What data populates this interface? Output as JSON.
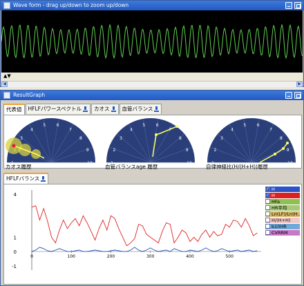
{
  "wave_window": {
    "title": "Wave form - drag up/down to zoom up/down",
    "strip_label": "▲▼"
  },
  "result_window": {
    "title": "ResultGraph"
  },
  "tabs": [
    {
      "label": "代表値",
      "icon": null,
      "active": true
    },
    {
      "label": "HFLFパワースペクトル",
      "icon": "chart-icon",
      "active": false
    },
    {
      "label": "カオス",
      "icon": "chart-icon",
      "active": false
    },
    {
      "label": "血管バランス",
      "icon": "chart-icon",
      "active": false
    }
  ],
  "gauges": [
    {
      "label": "カオス履歴",
      "ticks": [
        "1",
        "2",
        "3",
        "4",
        "5",
        "6",
        "7",
        "8",
        "9",
        "10"
      ]
    },
    {
      "label": "血管バランスage 履歴",
      "ticks": [
        "1",
        "2",
        "3",
        "4",
        "5",
        "6",
        "7",
        "8",
        "9",
        "10"
      ]
    },
    {
      "label": "自律神経比(H/(H+H))履歴",
      "ticks": [
        "1",
        "2",
        "3",
        "4",
        "5",
        "6",
        "7",
        "8",
        "9",
        "10"
      ]
    }
  ],
  "chart_tab": {
    "label": "HFLFバランス",
    "icon": "chart-icon"
  },
  "chart_data": {
    "type": "line",
    "title": "",
    "xlabel": "",
    "ylabel": "",
    "xlim": [
      0,
      580
    ],
    "ylim": [
      -1.3,
      4.3
    ],
    "xticks": [
      "0",
      "100",
      "200",
      "300",
      "400",
      "500"
    ],
    "yticks": [
      "4",
      "1",
      "0",
      "-1"
    ],
    "series": [
      {
        "name": "H",
        "color": "#e02020",
        "x": [
          0,
          10,
          20,
          30,
          40,
          50,
          60,
          70,
          80,
          90,
          100,
          110,
          120,
          130,
          140,
          150,
          160,
          170,
          180,
          190,
          200,
          210,
          220,
          230,
          240,
          250,
          260,
          270,
          280,
          290,
          300,
          310,
          320,
          330,
          340,
          350,
          360,
          370,
          380,
          390,
          400,
          410,
          420,
          430,
          440,
          450,
          460,
          470,
          480,
          490,
          500,
          510,
          520,
          530,
          540,
          550,
          560,
          570
        ],
        "values": [
          3.1,
          3.2,
          2.2,
          3.0,
          2.1,
          1.0,
          0.6,
          1.5,
          2.2,
          1.6,
          2.0,
          2.3,
          1.8,
          2.5,
          2.0,
          1.4,
          0.8,
          1.6,
          2.2,
          1.5,
          2.5,
          2.3,
          1.6,
          1.0,
          0.4,
          0.6,
          0.9,
          1.9,
          1.8,
          1.2,
          1.0,
          0.8,
          0.6,
          1.4,
          2.0,
          1.9,
          0.6,
          1.0,
          1.5,
          1.3,
          0.7,
          1.0,
          0.7,
          1.2,
          1.5,
          1.0,
          1.4,
          1.1,
          1.2,
          1.9,
          1.7,
          2.2,
          2.1,
          1.7,
          2.3,
          1.8,
          1.1,
          1.3
        ]
      },
      {
        "name": "",
        "color": "#2050b0",
        "x": [
          0,
          10,
          20,
          30,
          40,
          50,
          60,
          70,
          80,
          90,
          100,
          110,
          120,
          130,
          140,
          150,
          160,
          170,
          180,
          190,
          200,
          210,
          220,
          230,
          240,
          250,
          260,
          270,
          280,
          290,
          300,
          310,
          320,
          330,
          340,
          350,
          360,
          370,
          380,
          390,
          400,
          410,
          420,
          430,
          440,
          450,
          460,
          470,
          480,
          490,
          500,
          510,
          520,
          530,
          540,
          550,
          560,
          570
        ],
        "values": [
          0.0,
          0.1,
          0.3,
          0.2,
          0.05,
          0.0,
          0.1,
          0.2,
          0.1,
          0.0,
          0.0,
          0.05,
          0.1,
          0.0,
          0.0,
          0.05,
          0.1,
          0.05,
          0.0,
          0.0,
          0.05,
          0.1,
          0.05,
          0.0,
          0.0,
          0.1,
          0.3,
          0.1,
          0.0,
          0.1,
          0.25,
          0.1,
          0.0,
          0.05,
          0.1,
          0.0,
          0.2,
          0.1,
          0.0,
          0.0,
          0.1,
          0.05,
          0.0,
          0.1,
          0.25,
          0.1,
          0.0,
          0.05,
          0.2,
          0.1,
          0.0,
          0.05,
          0.1,
          0.0,
          0.05,
          0.1,
          0.0,
          0.05
        ]
      }
    ],
    "legend": {
      "placement": "right"
    }
  },
  "legend_items": [
    {
      "label": "H",
      "checked": true,
      "color": "#2b54c8"
    },
    {
      "label": "H",
      "checked": true,
      "color": "#e02020"
    },
    {
      "label": "HFa",
      "checked": false,
      "color": "#90c050"
    },
    {
      "label": "HR平均",
      "checked": false,
      "color": "#a8c878"
    },
    {
      "label": "Ln(LF)/Ln(H...",
      "checked": false,
      "color": "#d8b868"
    },
    {
      "label": "H/(H+H)",
      "checked": false,
      "color": "#f0c8c8"
    },
    {
      "label": "b10HR",
      "checked": false,
      "color": "#70a8d8"
    },
    {
      "label": "CVRRM",
      "checked": false,
      "color": "#c878c8"
    }
  ]
}
